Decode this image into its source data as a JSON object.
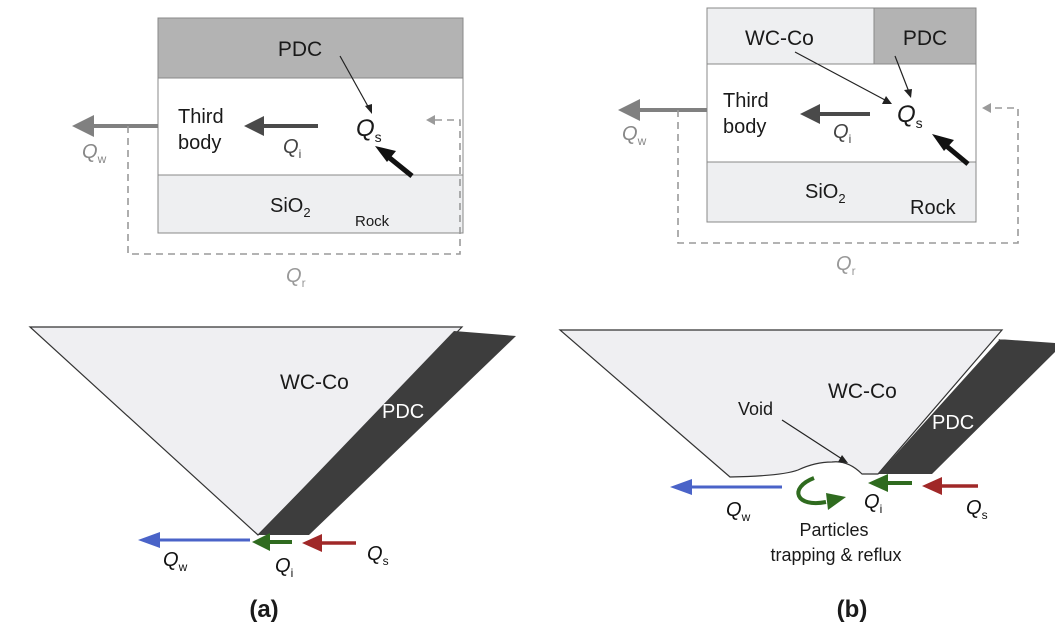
{
  "colors": {
    "pdc_fill": "#b3b3b3",
    "pdc_dark": "#3d3d3d",
    "wcco_fill": "#efeff2",
    "rock_fill": "#eeeff1",
    "flow_gray": "#808080",
    "dashed_gray": "#9a9a9a",
    "qw_arrow": "#4a63c8",
    "qi_arrow": "#2f6b1f",
    "qs_arrow": "#a02828"
  },
  "panel_a": {
    "schematic": {
      "pdc": "PDC",
      "third_body_1": "Third",
      "third_body_2": "body",
      "sio2": "SiO",
      "sio2_sub": "2",
      "rock": "Rock",
      "qs": "Q",
      "qs_sub": "s",
      "qi": "Q",
      "qi_sub": "i",
      "qw": "Q",
      "qw_sub": "w",
      "qr": "Q",
      "qr_sub": "r"
    },
    "wear": {
      "wcco": "WC-Co",
      "pdc": "PDC",
      "qw": "Q",
      "qw_sub": "w",
      "qi": "Q",
      "qi_sub": "i",
      "qs": "Q",
      "qs_sub": "s"
    },
    "caption": "(a)"
  },
  "panel_b": {
    "schematic": {
      "wcco": "WC-Co",
      "pdc": "PDC",
      "third_body_1": "Third",
      "third_body_2": "body",
      "sio2": "SiO",
      "sio2_sub": "2",
      "rock": "Rock",
      "qs": "Q",
      "qs_sub": "s",
      "qi": "Q",
      "qi_sub": "i",
      "qw": "Q",
      "qw_sub": "w",
      "qr": "Q",
      "qr_sub": "r"
    },
    "wear": {
      "wcco": "WC-Co",
      "pdc": "PDC",
      "void": "Void",
      "qw": "Q",
      "qw_sub": "w",
      "qi": "Q",
      "qi_sub": "i",
      "qs": "Q",
      "qs_sub": "s",
      "particles_1": "Particles",
      "particles_2": "trapping & reflux"
    },
    "caption": "(b)"
  }
}
